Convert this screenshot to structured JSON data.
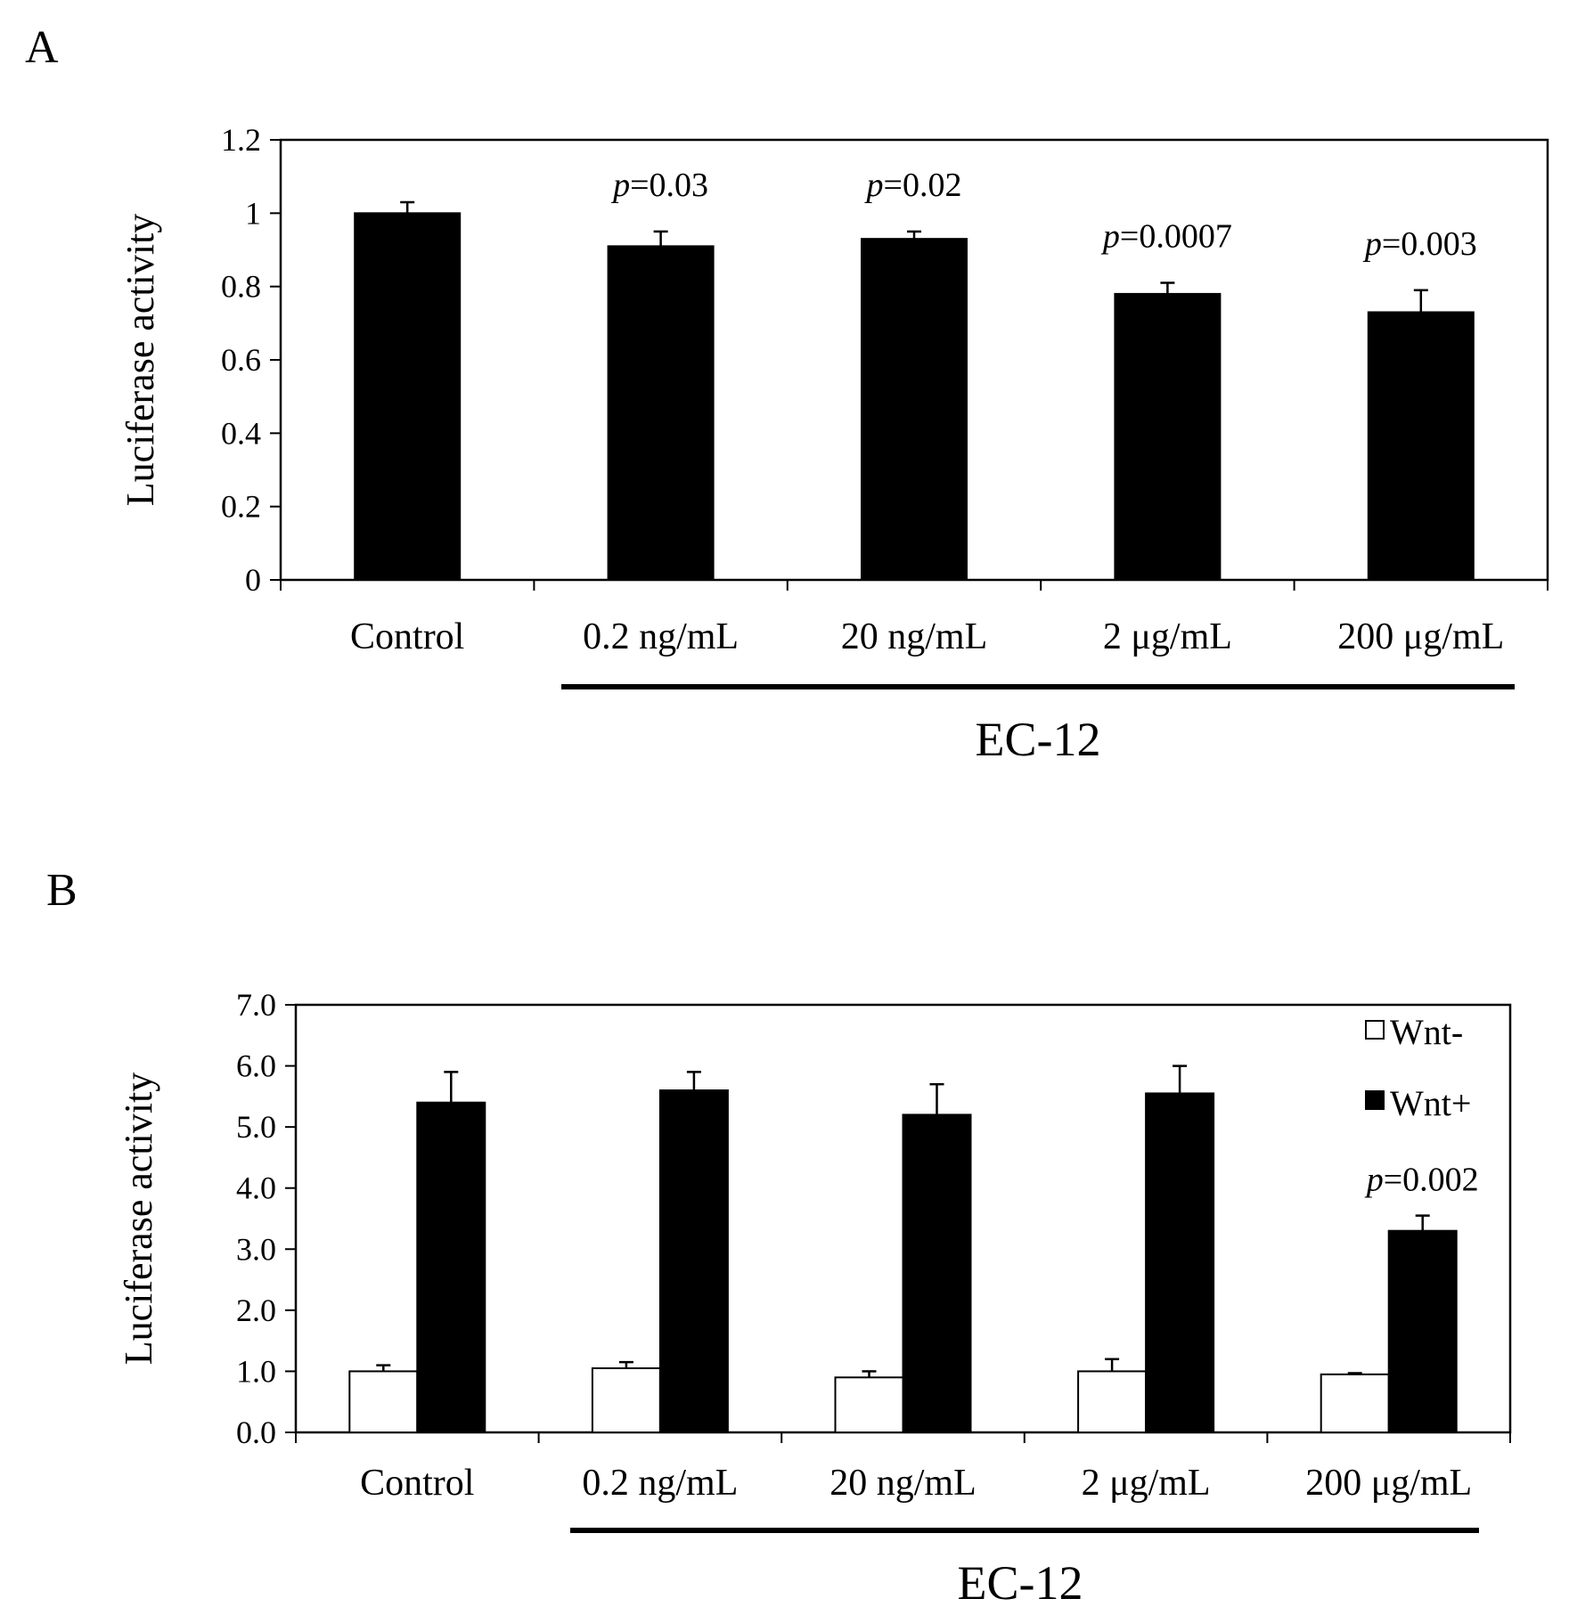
{
  "figure": {
    "panel_a_label": "A",
    "panel_b_label": "B"
  },
  "chart_data": [
    {
      "panel": "A",
      "type": "bar",
      "title": "",
      "ylabel": "Luciferase activity",
      "xlabel": "",
      "group_label": "EC-12",
      "categories": [
        "Control",
        "0.2 ng/mL",
        "20 ng/mL",
        "2 μg/mL",
        "200 μg/mL"
      ],
      "series": [
        {
          "name": "",
          "color": "#000000",
          "values": [
            1.0,
            0.91,
            0.93,
            0.78,
            0.73
          ],
          "errors": [
            0.03,
            0.04,
            0.02,
            0.03,
            0.06
          ]
        }
      ],
      "annotations": [
        "",
        "p=0.03",
        "p=0.02",
        "p=0.0007",
        "p=0.003"
      ],
      "ylim": [
        0,
        1.2
      ],
      "yticks": [
        "0",
        "0.2",
        "0.4",
        "0.6",
        "0.8",
        "1",
        "1.2"
      ],
      "grid": false,
      "legend": "none"
    },
    {
      "panel": "B",
      "type": "bar",
      "title": "",
      "ylabel": "Luciferase activity",
      "xlabel": "",
      "group_label": "EC-12",
      "categories": [
        "Control",
        "0.2 ng/mL",
        "20 ng/mL",
        "2 μg/mL",
        "200 μg/mL"
      ],
      "series": [
        {
          "name": "Wnt-",
          "color": "#ffffff",
          "values": [
            1.0,
            1.05,
            0.9,
            1.0,
            0.95
          ],
          "errors": [
            0.1,
            0.1,
            0.1,
            0.2,
            0.02
          ]
        },
        {
          "name": "Wnt+",
          "color": "#000000",
          "values": [
            5.4,
            5.6,
            5.2,
            5.55,
            3.3
          ],
          "errors": [
            0.5,
            0.3,
            0.5,
            0.45,
            0.25
          ]
        }
      ],
      "annotations": [
        "",
        "",
        "",
        "",
        "p=0.002"
      ],
      "ylim": [
        0,
        7.0
      ],
      "yticks": [
        "0.0",
        "1.0",
        "2.0",
        "3.0",
        "4.0",
        "5.0",
        "6.0",
        "7.0"
      ],
      "grid": false,
      "legend": "top-right"
    }
  ]
}
